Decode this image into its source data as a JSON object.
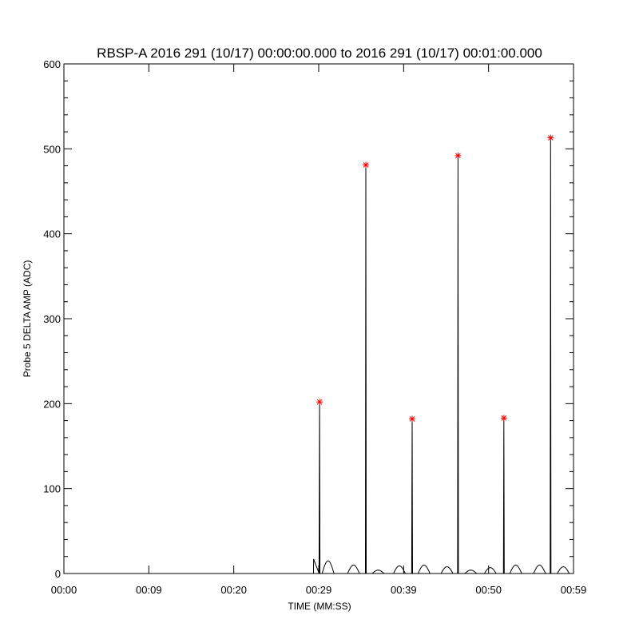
{
  "chart_data": {
    "type": "line",
    "title": "RBSP-A 2016 291 (10/17) 00:00:00.000 to 2016 291 (10/17) 00:01:00.000",
    "xlabel": "TIME (MM:SS)",
    "ylabel": "Probe 5 DELTA AMP (ADC)",
    "xlim": [
      0,
      60
    ],
    "ylim": [
      0,
      600
    ],
    "x_unit": "seconds",
    "xticks": [
      0,
      10,
      20,
      30,
      40,
      50,
      60
    ],
    "xtick_labels": [
      "00:00",
      "00:09",
      "00:20",
      "00:29",
      "00:39",
      "00:50",
      "00:59"
    ],
    "yticks": [
      0,
      100,
      200,
      300,
      400,
      500,
      600
    ],
    "ytick_labels": [
      "0",
      "100",
      "200",
      "300",
      "400",
      "500",
      "600"
    ],
    "y_minor_step": 20,
    "grid": false,
    "line_color": "#000000",
    "marker_color": "#ff0000",
    "marker": "asterisk",
    "spikes": [
      {
        "t": 30.1,
        "value": 202
      },
      {
        "t": 35.55,
        "value": 481
      },
      {
        "t": 41.0,
        "value": 182
      },
      {
        "t": 46.4,
        "value": 492
      },
      {
        "t": 51.8,
        "value": 183
      },
      {
        "t": 57.3,
        "value": 513
      }
    ],
    "background_bumps": [
      {
        "t": 31.1,
        "value": 15
      },
      {
        "t": 34.1,
        "value": 10
      },
      {
        "t": 37.0,
        "value": 4
      },
      {
        "t": 39.5,
        "value": 9
      },
      {
        "t": 42.4,
        "value": 10
      },
      {
        "t": 45.1,
        "value": 8
      },
      {
        "t": 47.9,
        "value": 4
      },
      {
        "t": 50.2,
        "value": 7
      },
      {
        "t": 53.2,
        "value": 10
      },
      {
        "t": 56.0,
        "value": 10
      },
      {
        "t": 58.8,
        "value": 8
      }
    ],
    "trace_start": {
      "t": 29.4,
      "value": 17
    }
  }
}
